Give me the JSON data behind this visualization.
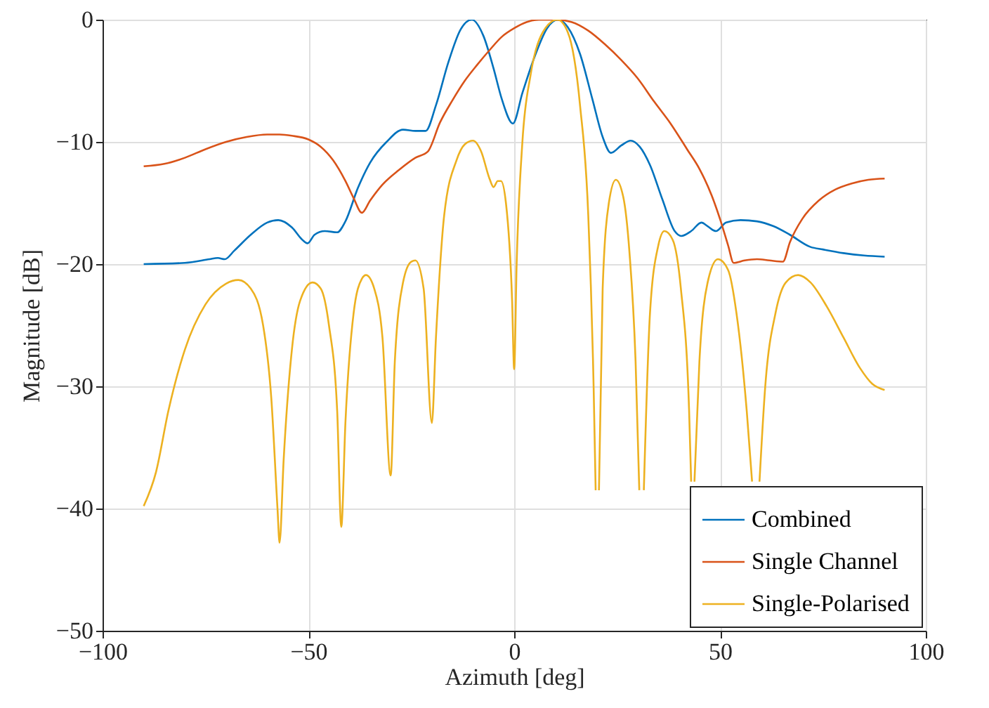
{
  "chart_data": {
    "type": "line",
    "xlabel": "Azimuth [deg]",
    "ylabel": "Magnitude [dB]",
    "xlim": [
      -100,
      100
    ],
    "xticks": [
      -100,
      -50,
      0,
      50,
      100
    ],
    "ylim": [
      -50,
      0
    ],
    "yticks": [
      -50,
      -40,
      -30,
      -20,
      -10,
      0
    ],
    "grid": true,
    "legend": "bottom right",
    "line_style": "solid",
    "marker": "none",
    "series": [
      {
        "name": "Combined",
        "color": "#0072bd",
        "x": [
          -90,
          -80,
          -74,
          -72,
          -70.3,
          -68,
          -64,
          -60,
          -57.3,
          -54,
          -51.5,
          -50.2,
          -48.5,
          -46,
          -43,
          -41,
          -38,
          -35,
          -31,
          -27,
          -24,
          -21.5,
          -19,
          -16,
          -13,
          -10.3,
          -7.5,
          -5,
          -3,
          -0.3,
          2,
          5,
          8,
          10.6,
          13,
          16,
          19,
          21.5,
          23.5,
          26,
          28.3,
          30.5,
          33,
          36,
          39,
          40.6,
          43,
          45.5,
          47,
          49,
          51.5,
          55,
          59,
          63,
          67,
          72,
          75,
          80,
          85,
          90
        ],
        "values": [
          -20,
          -19.9,
          -19.6,
          -19.5,
          -19.6,
          -18.9,
          -17.6,
          -16.6,
          -16.4,
          -17,
          -18,
          -18.3,
          -17.6,
          -17.3,
          -17.4,
          -16.5,
          -13.8,
          -11.7,
          -10,
          -9,
          -9.1,
          -9.1,
          -7,
          -3.5,
          -0.8,
          0,
          -1.3,
          -4,
          -6.5,
          -8.5,
          -6,
          -3,
          -0.7,
          0,
          -0.6,
          -2.8,
          -6.5,
          -9.6,
          -10.9,
          -10.3,
          -9.9,
          -10.4,
          -11.9,
          -14.7,
          -17.3,
          -17.7,
          -17.3,
          -16.6,
          -16.9,
          -17.3,
          -16.6,
          -16.4,
          -16.5,
          -16.9,
          -17.6,
          -18.6,
          -18.8,
          -19.1,
          -19.3,
          -19.4
        ]
      },
      {
        "name": "Single Channel",
        "color": "#d95319",
        "x": [
          -90,
          -85,
          -80,
          -75,
          -70,
          -65,
          -60,
          -57,
          -54,
          -50,
          -47,
          -44,
          -41,
          -39,
          -37,
          -35,
          -32,
          -28,
          -24,
          -21,
          -18,
          -15,
          -12,
          -9,
          -6,
          -3,
          0,
          3,
          6,
          10,
          14,
          18,
          22,
          26,
          30,
          34,
          38,
          42,
          45,
          48,
          50,
          52,
          53.3,
          56,
          59,
          62,
          65.3,
          67,
          70,
          74,
          78,
          82,
          86,
          90
        ],
        "values": [
          -12,
          -11.8,
          -11.3,
          -10.6,
          -10,
          -9.6,
          -9.4,
          -9.4,
          -9.5,
          -9.8,
          -10.4,
          -11.5,
          -13.2,
          -14.6,
          -15.8,
          -14.8,
          -13.5,
          -12.3,
          -11.3,
          -10.8,
          -8.4,
          -6.6,
          -5,
          -3.7,
          -2.5,
          -1.4,
          -0.7,
          -0.2,
          0,
          0,
          -0.2,
          -0.9,
          -2,
          -3.3,
          -4.8,
          -6.7,
          -8.5,
          -10.6,
          -12.2,
          -14.4,
          -16.3,
          -18.5,
          -19.9,
          -19.7,
          -19.6,
          -19.7,
          -19.8,
          -18.2,
          -16.3,
          -14.8,
          -13.9,
          -13.4,
          -13.1,
          -13
        ]
      },
      {
        "name": "Single-Polarised",
        "color": "#edb120",
        "x": [
          -90,
          -87,
          -84,
          -80,
          -75,
          -70,
          -67,
          -64,
          -61,
          -59,
          -57.5,
          -57,
          -56,
          -54,
          -52,
          -49,
          -47,
          -45,
          -43,
          -42,
          -41,
          -39,
          -37,
          -36,
          -34,
          -32,
          -30,
          -29,
          -27,
          -25,
          -24,
          -22,
          -20,
          -19,
          -17,
          -14,
          -12,
          -10,
          -8,
          -6,
          -5,
          -4,
          -3.2,
          -2,
          -0.5,
          0,
          0.6,
          2,
          4,
          7,
          10.5,
          13,
          16,
          18,
          19.3,
          19.8,
          20.2,
          20.6,
          21.5,
          23,
          24.7,
          26.5,
          28,
          29.5,
          30.4,
          31,
          31.5,
          33,
          35,
          36.5,
          38.5,
          40.5,
          42.5,
          43,
          43.4,
          43.8,
          45,
          47,
          49.5,
          52,
          54,
          56.5,
          57.8,
          58.7,
          59.6,
          61,
          63.5,
          66,
          69,
          72,
          76,
          80,
          84,
          87,
          90
        ],
        "values": [
          -39.8,
          -37,
          -32,
          -27,
          -23.3,
          -21.6,
          -21.3,
          -22,
          -25,
          -31,
          -40,
          -42.8,
          -36,
          -27,
          -23,
          -21.5,
          -22,
          -25,
          -32,
          -41.5,
          -33,
          -24,
          -21.2,
          -20.9,
          -22,
          -26,
          -37.3,
          -28,
          -21.5,
          -19.8,
          -19.7,
          -22,
          -33,
          -26,
          -16,
          -11.5,
          -10.2,
          -9.9,
          -10.8,
          -13,
          -13.7,
          -13.2,
          -13.2,
          -15,
          -23,
          -28.6,
          -20,
          -10,
          -4.5,
          -1,
          0,
          -1,
          -7,
          -16,
          -30,
          -38.5,
          null,
          -38.5,
          -22,
          -15,
          -13.1,
          -14.5,
          -19,
          -28,
          -38.5,
          null,
          -38.5,
          -24,
          -18.5,
          -17.3,
          -18,
          -22,
          -32,
          -37.8,
          null,
          -37.8,
          -28,
          -21.5,
          -19.6,
          -20.5,
          -24,
          -32,
          -37.8,
          null,
          -37.8,
          -30,
          -24,
          -21.5,
          -20.9,
          -21.5,
          -23.5,
          -26,
          -28.5,
          -29.8,
          -30.3
        ]
      }
    ]
  }
}
